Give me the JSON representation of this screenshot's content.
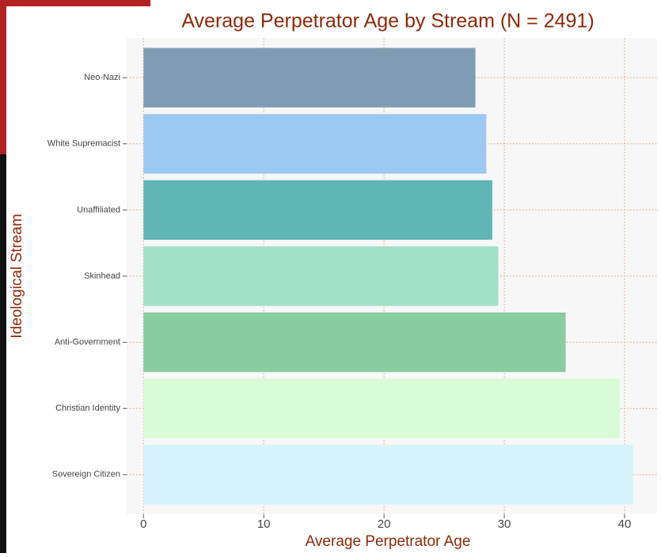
{
  "chart_data": {
    "type": "bar",
    "orientation": "horizontal",
    "title": "Average Perpetrator Age by Stream (N = 2491)",
    "x_label": "Average Perpetrator Age",
    "y_label": "Ideological Stream",
    "categories": [
      "Neo-Nazi",
      "White Supremacist",
      "Unaffiliated",
      "Skinhead",
      "Anti-Government",
      "Christian Identity",
      "Sovereign Citizen"
    ],
    "values": [
      27.6,
      28.5,
      29.0,
      29.5,
      35.1,
      39.6,
      40.7
    ],
    "colors": [
      "#7f9db5",
      "#9bc9f2",
      "#62b5b5",
      "#a1dfc8",
      "#88cca0",
      "#d8fdd6",
      "#d6f2fb"
    ],
    "xlim": [
      -1.4,
      42.7
    ],
    "xticks": [
      0,
      10,
      20,
      30,
      40
    ],
    "grid": true
  }
}
